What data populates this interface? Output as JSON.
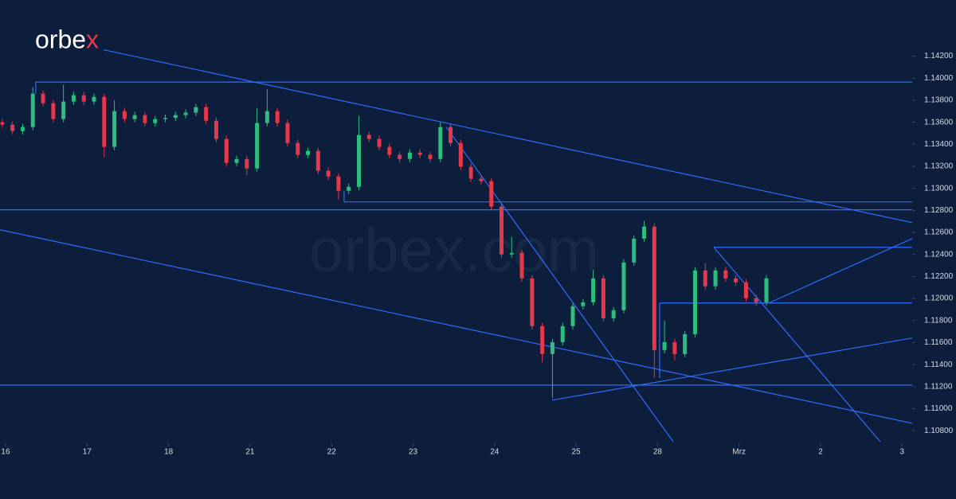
{
  "chart_data": {
    "type": "candlestick",
    "logo": "orbex",
    "watermark": "orbex.com",
    "up_color": "#2dbd7e",
    "down_color": "#e5384a",
    "line_color": "#2f6bff",
    "xlim": [
      -0.0684,
      11.124
    ],
    "ylim": [
      1.107,
      1.1471
    ],
    "xticks": [
      {
        "value": 0,
        "label": "16"
      },
      {
        "value": 1,
        "label": "17"
      },
      {
        "value": 2,
        "label": "18"
      },
      {
        "value": 3,
        "label": "21"
      },
      {
        "value": 4,
        "label": "22"
      },
      {
        "value": 5,
        "label": "23"
      },
      {
        "value": 6,
        "label": "24"
      },
      {
        "value": 7,
        "label": "25"
      },
      {
        "value": 8,
        "label": "28"
      },
      {
        "value": 9,
        "label": "Mrz"
      },
      {
        "value": 10,
        "label": "2"
      },
      {
        "value": 11,
        "label": "3"
      }
    ],
    "yticks": [
      {
        "value": 1.142,
        "label": "1.14200"
      },
      {
        "value": 1.14,
        "label": "1.14000"
      },
      {
        "value": 1.138,
        "label": "1.13800"
      },
      {
        "value": 1.136,
        "label": "1.13600"
      },
      {
        "value": 1.134,
        "label": "1.13400"
      },
      {
        "value": 1.132,
        "label": "1.13200"
      },
      {
        "value": 1.13,
        "label": "1.13000"
      },
      {
        "value": 1.128,
        "label": "1.12800"
      },
      {
        "value": 1.126,
        "label": "1.12600"
      },
      {
        "value": 1.124,
        "label": "1.12400"
      },
      {
        "value": 1.122,
        "label": "1.12200"
      },
      {
        "value": 1.12,
        "label": "1.12000"
      },
      {
        "value": 1.118,
        "label": "1.11800"
      },
      {
        "value": 1.116,
        "label": "1.11600"
      },
      {
        "value": 1.114,
        "label": "1.11400"
      },
      {
        "value": 1.112,
        "label": "1.11200"
      },
      {
        "value": 1.11,
        "label": "1.11000"
      },
      {
        "value": 1.108,
        "label": "1.10800"
      }
    ],
    "x": [
      -0.04,
      0.085,
      0.21,
      0.335,
      0.46,
      0.585,
      0.71,
      0.835,
      0.96,
      1.085,
      1.21,
      1.335,
      1.46,
      1.585,
      1.71,
      1.835,
      1.96,
      2.085,
      2.21,
      2.335,
      2.46,
      2.585,
      2.71,
      2.835,
      2.96,
      3.085,
      3.21,
      3.335,
      3.46,
      3.585,
      3.71,
      3.835,
      3.96,
      4.085,
      4.21,
      4.335,
      4.46,
      4.585,
      4.71,
      4.835,
      4.96,
      5.085,
      5.21,
      5.335,
      5.46,
      5.585,
      5.71,
      5.835,
      5.96,
      6.085,
      6.21,
      6.335,
      6.46,
      6.585,
      6.71,
      6.835,
      6.96,
      7.085,
      7.21,
      7.335,
      7.46,
      7.585,
      7.71,
      7.835,
      7.96,
      8.085,
      8.21,
      8.335,
      8.46,
      8.585,
      8.71,
      8.835,
      8.96,
      9.085,
      9.21,
      9.335
    ],
    "open": [
      1.136,
      1.13578,
      1.1352,
      1.13557,
      1.1386,
      1.13773,
      1.13629,
      1.13788,
      1.13846,
      1.13788,
      1.13831,
      1.13376,
      1.13701,
      1.13629,
      1.13665,
      1.13593,
      1.13629,
      1.1364,
      1.13665,
      1.13687,
      1.13737,
      1.13614,
      1.13448,
      1.13231,
      1.13267,
      1.13181,
      1.13593,
      1.13701,
      1.13593,
      1.13412,
      1.13304,
      1.1334,
      1.13159,
      1.13108,
      1.12978,
      1.13014,
      1.13484,
      1.13448,
      1.13376,
      1.13304,
      1.13267,
      1.13325,
      1.13304,
      1.13267,
      1.13557,
      1.13412,
      1.13195,
      1.13087,
      1.13065,
      1.12834,
      1.124,
      1.12414,
      1.12183,
      1.11749,
      1.11496,
      1.11604,
      1.11749,
      1.1193,
      1.11966,
      1.12183,
      1.11821,
      1.11894,
      1.12327,
      1.12544,
      1.12653,
      1.11532,
      1.11604,
      1.11496,
      1.11677,
      1.12255,
      1.12111,
      1.12255,
      1.12183,
      1.12147,
      1.12002,
      1.11966
    ],
    "high": [
      1.1363,
      1.13608,
      1.13587,
      1.1392,
      1.1389,
      1.13803,
      1.1394,
      1.13876,
      1.13876,
      1.13861,
      1.13861,
      1.138,
      1.13731,
      1.13695,
      1.13695,
      1.13659,
      1.1367,
      1.13695,
      1.13717,
      1.13767,
      1.13767,
      1.13644,
      1.13478,
      1.13297,
      1.13297,
      1.1373,
      1.139,
      1.13731,
      1.13623,
      1.13442,
      1.1337,
      1.1337,
      1.13189,
      1.13138,
      1.13044,
      1.1366,
      1.13514,
      1.13478,
      1.13406,
      1.13334,
      1.13355,
      1.13355,
      1.13334,
      1.136,
      1.13587,
      1.13442,
      1.13225,
      1.13117,
      1.13095,
      1.12864,
      1.1256,
      1.12444,
      1.12213,
      1.11779,
      1.11634,
      1.11779,
      1.1196,
      1.11996,
      1.1226,
      1.12213,
      1.11924,
      1.12357,
      1.12574,
      1.12703,
      1.12683,
      1.118,
      1.11634,
      1.11707,
      1.12285,
      1.1232,
      1.12285,
      1.12285,
      1.12213,
      1.12177,
      1.12032,
      1.12213
    ],
    "low": [
      1.13548,
      1.1349,
      1.1349,
      1.13527,
      1.13743,
      1.13599,
      1.13599,
      1.13758,
      1.13758,
      1.13758,
      1.1328,
      1.13346,
      1.13599,
      1.13599,
      1.13563,
      1.13563,
      1.13599,
      1.1361,
      1.13635,
      1.13657,
      1.13584,
      1.13418,
      1.13201,
      1.13201,
      1.1312,
      1.13151,
      1.13563,
      1.13563,
      1.13382,
      1.13274,
      1.13274,
      1.13129,
      1.13078,
      1.129,
      1.12948,
      1.12984,
      1.13418,
      1.13346,
      1.13274,
      1.13237,
      1.13237,
      1.13274,
      1.13237,
      1.13237,
      1.13382,
      1.13165,
      1.13057,
      1.13035,
      1.12804,
      1.1237,
      1.1237,
      1.12153,
      1.11719,
      1.1142,
      1.111,
      1.11574,
      1.11719,
      1.119,
      1.11936,
      1.11791,
      1.11791,
      1.11864,
      1.12297,
      1.12514,
      1.1128,
      1.11502,
      1.1144,
      1.11466,
      1.11647,
      1.12081,
      1.12081,
      1.12153,
      1.12117,
      1.11972,
      1.11936,
      1.11936
    ],
    "close": [
      1.13578,
      1.1352,
      1.13557,
      1.1386,
      1.13773,
      1.13629,
      1.13788,
      1.13846,
      1.13788,
      1.13831,
      1.13376,
      1.13701,
      1.13629,
      1.13665,
      1.13593,
      1.13629,
      1.1364,
      1.13665,
      1.13687,
      1.13737,
      1.13614,
      1.13448,
      1.13231,
      1.13267,
      1.13181,
      1.13593,
      1.13701,
      1.13593,
      1.13412,
      1.13304,
      1.1334,
      1.13159,
      1.13108,
      1.12978,
      1.13014,
      1.13484,
      1.13448,
      1.13376,
      1.13304,
      1.13267,
      1.13325,
      1.13304,
      1.13267,
      1.13557,
      1.13412,
      1.13195,
      1.13087,
      1.13065,
      1.12834,
      1.124,
      1.12414,
      1.12183,
      1.11749,
      1.11496,
      1.11604,
      1.11749,
      1.1193,
      1.11966,
      1.12183,
      1.11821,
      1.11894,
      1.12327,
      1.12544,
      1.12653,
      1.11532,
      1.11604,
      1.11496,
      1.11677,
      1.12255,
      1.12111,
      1.12255,
      1.12183,
      1.12147,
      1.12002,
      1.11966,
      1.12183
    ],
    "lines": [
      {
        "x": [
          0.371,
          11.124
        ],
        "y": [
          1.13965,
          1.13965
        ]
      },
      {
        "x": [
          0.371,
          0.371
        ],
        "y": [
          1.13965,
          1.1386
        ]
      },
      {
        "x": [
          1.202,
          11.124
        ],
        "y": [
          1.14258,
          1.12689
        ]
      },
      {
        "x": [
          4.154,
          11.124
        ],
        "y": [
          1.12877,
          1.12877
        ]
      },
      {
        "x": [
          4.154,
          4.154
        ],
        "y": [
          1.12978,
          1.12877
        ]
      },
      {
        "x": [
          -0.0684,
          11.124
        ],
        "y": [
          1.12805,
          1.12805
        ]
      },
      {
        "x": [
          -0.0684,
          11.124
        ],
        "y": [
          1.12624,
          1.10867
        ]
      },
      {
        "x": [
          -0.0684,
          11.124
        ],
        "y": [
          1.11214,
          1.11214
        ]
      },
      {
        "x": [
          5.406,
          8.192
        ],
        "y": [
          1.13557,
          1.107
        ]
      },
      {
        "x": [
          6.706,
          11.124
        ],
        "y": [
          1.11077,
          1.11641
        ]
      },
      {
        "x": [
          8.69,
          11.124
        ],
        "y": [
          1.12465,
          1.12465
        ]
      },
      {
        "x": [
          8.69,
          10.733
        ],
        "y": [
          1.12465,
          1.107
        ]
      },
      {
        "x": [
          8.025,
          11.124
        ],
        "y": [
          1.11959,
          1.11959
        ]
      },
      {
        "x": [
          8.025,
          8.025
        ],
        "y": [
          1.11959,
          1.11279
        ]
      },
      {
        "x": [
          9.365,
          11.124
        ],
        "y": [
          1.11959,
          1.12544
        ]
      }
    ]
  }
}
